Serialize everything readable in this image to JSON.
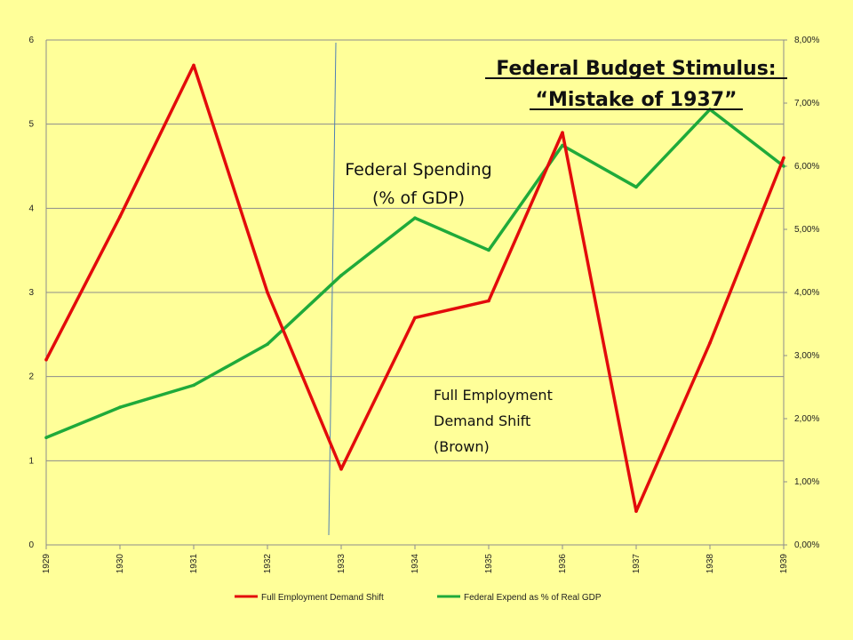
{
  "chart_data": {
    "type": "line",
    "title_line1": "Federal Budget Stimulus:",
    "title_line2": "“Mistake of 1937”",
    "categories": [
      "1929",
      "1930",
      "1931",
      "1932",
      "1933",
      "1934",
      "1935",
      "1936",
      "1937",
      "1938",
      "1939"
    ],
    "y_left": {
      "range": [
        0,
        6
      ],
      "ticks": [
        "0",
        "1",
        "2",
        "3",
        "4",
        "5",
        "6"
      ]
    },
    "y_right": {
      "range": [
        0,
        8
      ],
      "ticks": [
        "0,00%",
        "1,00%",
        "2,00%",
        "3,00%",
        "4,00%",
        "5,00%",
        "6,00%",
        "7,00%",
        "8,00%"
      ]
    },
    "grid": true,
    "legend_position": "bottom",
    "series": [
      {
        "name": "Full Employment Demand Shift",
        "axis": "left",
        "color": "#e30b0b",
        "values": [
          2.2,
          3.9,
          5.7,
          3.0,
          0.9,
          2.7,
          2.9,
          4.9,
          0.4,
          2.4,
          4.6
        ]
      },
      {
        "name": "Federal Expend as % of Real GDP",
        "axis": "right",
        "color": "#1faa3a",
        "values": [
          1.7,
          2.18,
          2.53,
          3.18,
          4.27,
          5.18,
          4.67,
          6.33,
          5.67,
          6.9,
          6.0
        ]
      }
    ],
    "annotations": {
      "spending_label_line1": "Federal Spending",
      "spending_label_line2": "(% of GDP)",
      "demand_label_line1": "Full Employment",
      "demand_label_line2": "Demand Shift",
      "demand_label_line3": "(Brown)"
    },
    "marker_line_color": "#4f7fb5"
  }
}
